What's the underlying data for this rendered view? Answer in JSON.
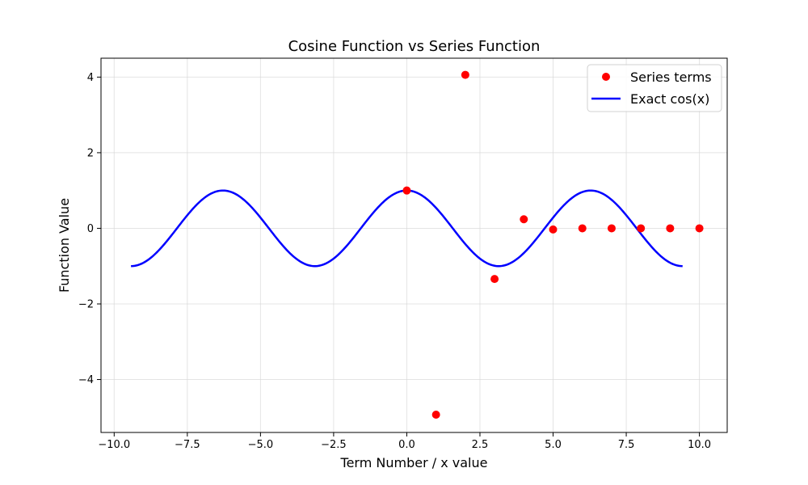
{
  "chart_data": {
    "type": "line",
    "title": "Cosine Function vs Series Function",
    "xlabel": "Term Number / x value",
    "ylabel": "Function Value",
    "xlim": [
      -10.45,
      10.95
    ],
    "ylim": [
      -5.4,
      4.5
    ],
    "xticks": [
      -10.0,
      -7.5,
      -5.0,
      -2.5,
      0.0,
      2.5,
      5.0,
      7.5,
      10.0
    ],
    "xtick_labels": [
      "−10.0",
      "−7.5",
      "−5.0",
      "−2.5",
      "0.0",
      "2.5",
      "5.0",
      "7.5",
      "10.0"
    ],
    "yticks": [
      -4,
      -2,
      0,
      2,
      4
    ],
    "ytick_labels": [
      "−4",
      "−2",
      "0",
      "2",
      "4"
    ],
    "grid": true,
    "legend_position": "top-right",
    "series": [
      {
        "name": "Series terms",
        "kind": "scatter",
        "color": "#ff0000",
        "x": [
          0,
          1,
          2,
          3,
          4,
          5,
          6,
          7,
          8,
          9,
          10
        ],
        "y": [
          1.0,
          -4.93,
          4.06,
          -1.34,
          0.24,
          -0.03,
          0.0,
          0.0,
          0.0,
          0.0,
          0.0
        ]
      },
      {
        "name": "Exact cos(x)",
        "kind": "line",
        "color": "#0000ff",
        "function": "cos",
        "x_range": [
          -9.42478,
          9.42478
        ]
      }
    ]
  }
}
